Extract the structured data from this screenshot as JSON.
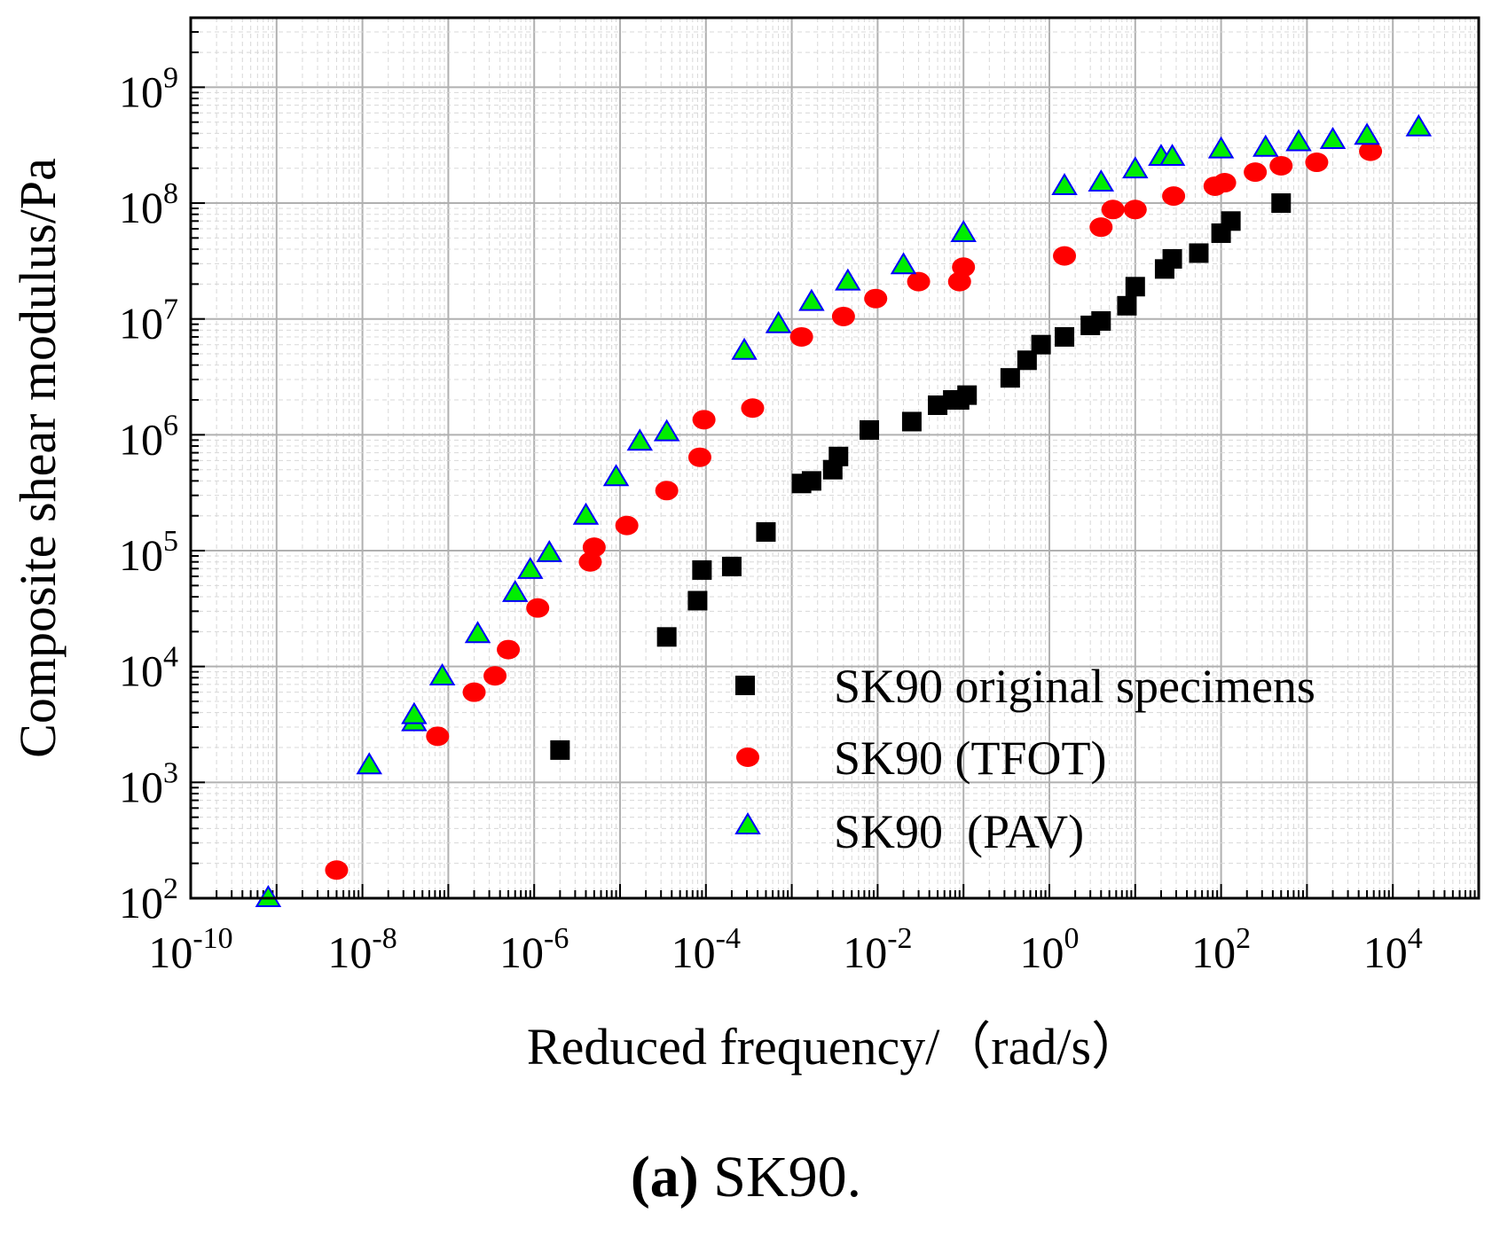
{
  "chart_data": {
    "type": "scatter",
    "xscale": "log",
    "yscale": "log",
    "xlabel": "Reduced frequency/（rad/s）",
    "ylabel": "Composite shear modulus/Pa",
    "xlim_exp": [
      -10,
      5
    ],
    "ylim_exp": [
      2,
      9.6
    ],
    "xtick_labels": [
      {
        "base": "10",
        "exp": "-10"
      },
      {
        "base": "10",
        "exp": "-8"
      },
      {
        "base": "10",
        "exp": "-6"
      },
      {
        "base": "10",
        "exp": "-4"
      },
      {
        "base": "10",
        "exp": "-2"
      },
      {
        "base": "10",
        "exp": "0"
      },
      {
        "base": "10",
        "exp": "2"
      },
      {
        "base": "10",
        "exp": "4"
      }
    ],
    "xtick_exps": [
      -10,
      -8,
      -6,
      -4,
      -2,
      0,
      2,
      4
    ],
    "ytick_labels": [
      {
        "base": "10",
        "exp": "2"
      },
      {
        "base": "10",
        "exp": "3"
      },
      {
        "base": "10",
        "exp": "4"
      },
      {
        "base": "10",
        "exp": "5"
      },
      {
        "base": "10",
        "exp": "6"
      },
      {
        "base": "10",
        "exp": "7"
      },
      {
        "base": "10",
        "exp": "8"
      },
      {
        "base": "10",
        "exp": "9"
      }
    ],
    "ytick_exps": [
      2,
      3,
      4,
      5,
      6,
      7,
      8,
      9
    ],
    "grid": true,
    "legend_position": "lower-right",
    "series": [
      {
        "name": "SK90 original specimens",
        "marker": "square",
        "color": "#000000",
        "points": [
          [
            2e-06,
            1900
          ],
          [
            3.5e-05,
            18000
          ],
          [
            8e-05,
            37000
          ],
          [
            9e-05,
            68000
          ],
          [
            0.0002,
            73000
          ],
          [
            0.0005,
            145000
          ],
          [
            0.0013,
            380000
          ],
          [
            0.0017,
            400000
          ],
          [
            0.003,
            500000
          ],
          [
            0.0035,
            650000
          ],
          [
            0.008,
            1100000
          ],
          [
            0.025,
            1300000
          ],
          [
            0.05,
            1800000
          ],
          [
            0.075,
            2000000
          ],
          [
            0.09,
            2000000
          ],
          [
            0.11,
            2200000
          ],
          [
            0.35,
            3100000
          ],
          [
            0.55,
            4400000
          ],
          [
            0.8,
            6000000
          ],
          [
            1.5,
            7000000
          ],
          [
            3,
            8800000
          ],
          [
            4,
            9600000
          ],
          [
            8,
            13000000
          ],
          [
            10,
            19000000
          ],
          [
            22,
            27000000
          ],
          [
            27,
            33000000
          ],
          [
            55,
            37000000
          ],
          [
            100,
            55000000
          ],
          [
            130,
            70000000
          ],
          [
            500,
            100000000
          ]
        ]
      },
      {
        "name": "SK90 (TFOT)",
        "marker": "circle",
        "color": "#ff0000",
        "points": [
          [
            5e-09,
            175
          ],
          [
            7.5e-08,
            2500
          ],
          [
            2e-07,
            6000
          ],
          [
            3.5e-07,
            8300
          ],
          [
            5e-07,
            14000
          ],
          [
            1.1e-06,
            32000
          ],
          [
            4.5e-06,
            80000
          ],
          [
            5e-06,
            107000
          ],
          [
            1.2e-05,
            165000
          ],
          [
            3.5e-05,
            330000
          ],
          [
            8.5e-05,
            640000
          ],
          [
            9.5e-05,
            1350000
          ],
          [
            0.00035,
            1700000
          ],
          [
            0.0013,
            7000000
          ],
          [
            0.004,
            10500000
          ],
          [
            0.0095,
            15000000
          ],
          [
            0.03,
            21000000
          ],
          [
            0.09,
            21000000
          ],
          [
            0.1,
            28000000
          ],
          [
            1.5,
            35000000
          ],
          [
            4,
            62000000
          ],
          [
            5.5,
            88000000
          ],
          [
            10,
            88000000
          ],
          [
            28,
            115000000
          ],
          [
            85,
            140000000
          ],
          [
            110,
            150000000
          ],
          [
            250,
            185000000
          ],
          [
            500,
            210000000
          ],
          [
            1300,
            225000000
          ],
          [
            5500,
            280000000
          ]
        ]
      },
      {
        "name": "SK90  (PAV)",
        "marker": "triangle",
        "color": "#00ee00",
        "stroke": "#0000ff",
        "points": [
          [
            8e-10,
            100
          ],
          [
            1.2e-08,
            1400
          ],
          [
            4e-08,
            3300
          ],
          [
            4e-08,
            3800
          ],
          [
            8.5e-08,
            8200
          ],
          [
            2.2e-07,
            19000
          ],
          [
            6e-07,
            43000
          ],
          [
            9e-07,
            68000
          ],
          [
            1.5e-06,
            95000
          ],
          [
            4e-06,
            200000
          ],
          [
            9e-06,
            430000
          ],
          [
            1.7e-05,
            870000
          ],
          [
            3.5e-05,
            1050000
          ],
          [
            0.00028,
            5300000
          ],
          [
            0.0007,
            9000000
          ],
          [
            0.0017,
            14000000
          ],
          [
            0.0045,
            21000000
          ],
          [
            0.02,
            29000000
          ],
          [
            0.1,
            55000000
          ],
          [
            1.5,
            140000000
          ],
          [
            4,
            150000000
          ],
          [
            10,
            195000000
          ],
          [
            20,
            250000000
          ],
          [
            27,
            250000000
          ],
          [
            100,
            290000000
          ],
          [
            330,
            300000000
          ],
          [
            800,
            335000000
          ],
          [
            2000,
            350000000
          ],
          [
            5000,
            380000000
          ],
          [
            20000,
            450000000
          ]
        ]
      }
    ]
  },
  "caption": {
    "label": "(a)",
    "text": "SK90."
  }
}
